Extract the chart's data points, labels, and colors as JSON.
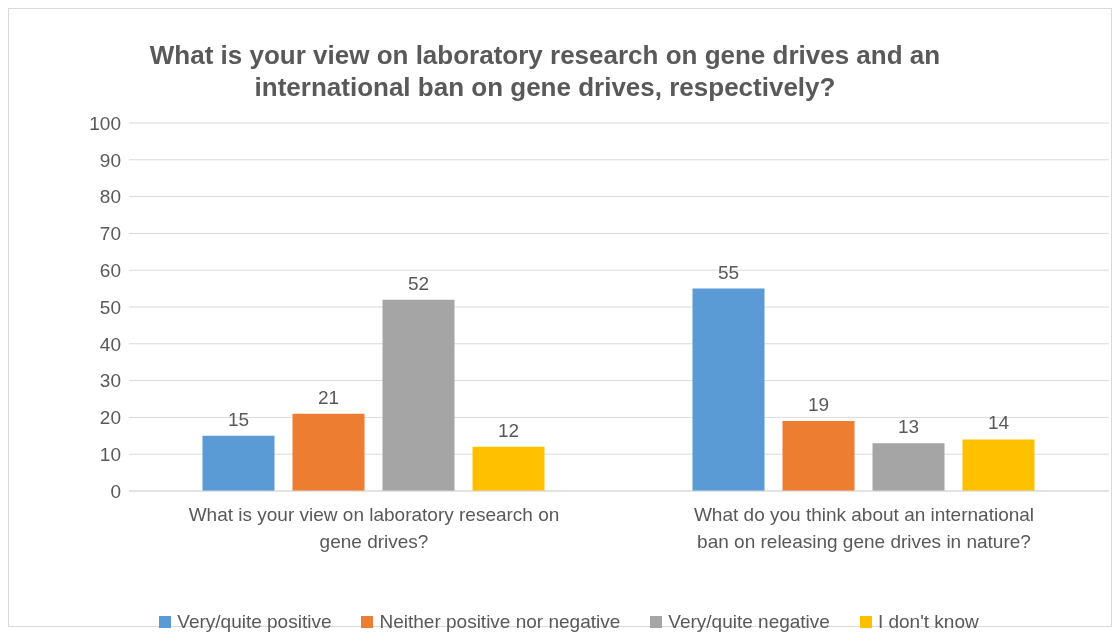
{
  "chart_data": {
    "type": "bar",
    "title": "What is your view on laboratory research on gene drives and an international ban on gene drives, respectively?",
    "categories": [
      "What is your view on laboratory research on gene drives?",
      "What do you think about an international ban on releasing gene drives in nature?"
    ],
    "series": [
      {
        "name": "Very/quite positive",
        "color": "#5b9bd5",
        "values": [
          15,
          55
        ]
      },
      {
        "name": "Neither positive nor negative",
        "color": "#ed7d31",
        "values": [
          21,
          19
        ]
      },
      {
        "name": "Very/quite negative",
        "color": "#a5a5a5",
        "values": [
          52,
          13
        ]
      },
      {
        "name": "I don't know",
        "color": "#ffc000",
        "values": [
          12,
          14
        ]
      }
    ],
    "ylim": [
      0,
      100
    ],
    "yticks": [
      0,
      10,
      20,
      30,
      40,
      50,
      60,
      70,
      80,
      90,
      100
    ],
    "grid": "y",
    "legend": "bottom",
    "data_labels": true
  }
}
